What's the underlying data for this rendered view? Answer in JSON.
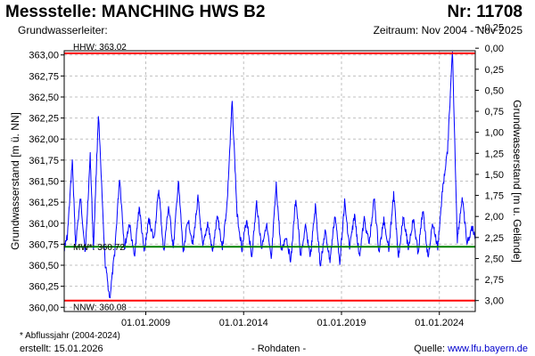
{
  "header": {
    "station": "Messstelle: MANCHING HWS B2",
    "number": "Nr: 11708",
    "aquifer": "Grundwasserleiter:",
    "period": "Zeitraum: Nov 2004 - Nov 2025"
  },
  "footer": {
    "footnote": "* Abflussjahr (2004-2024)",
    "created": "erstellt:  15.01.2026",
    "raw": "- Rohdaten -",
    "source_prefix": "Quelle: ",
    "source_link": "www.lfu.bayern.de"
  },
  "colors": {
    "series": "#0000ff",
    "reference": "#ff0000",
    "mean": "#008000",
    "grid": "#c0c0c0"
  },
  "chart_data": {
    "type": "line",
    "ylabel_left": "Grundwasserstand [m ü. NN]",
    "ylabel_right": "Grundwasserstand [m u. Gelände]",
    "ylim": [
      359.95,
      363.05
    ],
    "yticks_left": [
      "360,00",
      "360,25",
      "360,50",
      "360,75",
      "361,00",
      "361,25",
      "361,50",
      "361,75",
      "362,00",
      "362,25",
      "362,50",
      "362,75",
      "363,00"
    ],
    "yticks_right": [
      "-0,25",
      "0,00",
      "0,25",
      "0,50",
      "0,75",
      "1,00",
      "1,25",
      "1,50",
      "1,75",
      "2,00",
      "2,25",
      "2,50",
      "2,75",
      "3,00"
    ],
    "yticks_right_depth": [
      -0.25,
      0,
      0.25,
      0.5,
      0.75,
      1,
      1.25,
      1.5,
      1.75,
      2,
      2.25,
      2.5,
      2.75,
      3
    ],
    "ground_level": 363.08,
    "xlim": [
      "2004-11-01",
      "2025-11-01"
    ],
    "xticks": [
      "01.01.2009",
      "01.01.2014",
      "01.01.2019",
      "01.01.2024"
    ],
    "xtick_dates": [
      "2009-01-01",
      "2014-01-01",
      "2019-01-01",
      "2024-01-01"
    ],
    "grid": true,
    "reference_lines": [
      {
        "label": "HHW: 363.02",
        "value": 363.02
      },
      {
        "label": "NNW: 360.08",
        "value": 360.08
      }
    ],
    "mean_line": {
      "label": "MW*: 360.72",
      "value": 360.72
    },
    "series": [
      {
        "x": [
          "2004-11",
          "2005-01",
          "2005-04",
          "2005-06",
          "2005-09",
          "2005-12",
          "2006-03",
          "2006-05",
          "2006-08",
          "2006-12",
          "2007-03",
          "2007-06",
          "2007-09",
          "2007-12",
          "2008-03",
          "2008-06",
          "2008-09",
          "2008-12",
          "2009-03",
          "2009-06",
          "2009-09",
          "2009-12",
          "2010-03",
          "2010-06",
          "2010-09",
          "2010-12",
          "2011-03",
          "2011-06",
          "2011-09",
          "2011-12",
          "2012-03",
          "2012-06",
          "2012-09",
          "2012-12",
          "2013-03",
          "2013-06",
          "2013-09",
          "2013-12",
          "2014-03",
          "2014-06",
          "2014-09",
          "2014-12",
          "2015-03",
          "2015-06",
          "2015-09",
          "2015-12",
          "2016-03",
          "2016-06",
          "2016-09",
          "2016-12",
          "2017-03",
          "2017-06",
          "2017-09",
          "2017-12",
          "2018-03",
          "2018-06",
          "2018-09",
          "2018-12",
          "2019-03",
          "2019-06",
          "2019-09",
          "2019-12",
          "2020-03",
          "2020-06",
          "2020-09",
          "2020-12",
          "2021-03",
          "2021-06",
          "2021-09",
          "2021-12",
          "2022-03",
          "2022-06",
          "2022-09",
          "2022-12",
          "2023-03",
          "2023-06",
          "2023-09",
          "2023-12",
          "2024-03",
          "2024-06",
          "2024-09",
          "2024-12",
          "2025-03",
          "2025-06",
          "2025-09",
          "2025-11"
        ],
        "values": [
          360.7,
          360.85,
          361.75,
          360.75,
          361.3,
          360.65,
          361.8,
          360.7,
          362.3,
          360.55,
          360.1,
          360.65,
          361.55,
          360.7,
          361.0,
          360.6,
          361.2,
          360.65,
          361.05,
          360.8,
          361.4,
          360.65,
          361.2,
          360.7,
          361.5,
          360.65,
          361.05,
          360.75,
          361.3,
          360.7,
          361.0,
          360.65,
          361.1,
          360.7,
          361.25,
          362.45,
          361.1,
          360.7,
          361.05,
          360.6,
          361.25,
          360.7,
          361.0,
          360.55,
          361.45,
          360.65,
          360.85,
          360.55,
          361.3,
          360.6,
          360.95,
          360.6,
          361.2,
          360.5,
          360.9,
          360.55,
          361.1,
          360.55,
          361.25,
          360.7,
          361.1,
          360.6,
          361.05,
          360.75,
          361.3,
          360.65,
          361.05,
          360.7,
          361.35,
          360.6,
          361.1,
          360.7,
          361.05,
          360.65,
          361.15,
          360.6,
          361.0,
          360.7,
          361.4,
          361.85,
          363.02,
          360.8,
          361.3,
          360.75,
          360.95,
          360.85
        ]
      }
    ]
  }
}
